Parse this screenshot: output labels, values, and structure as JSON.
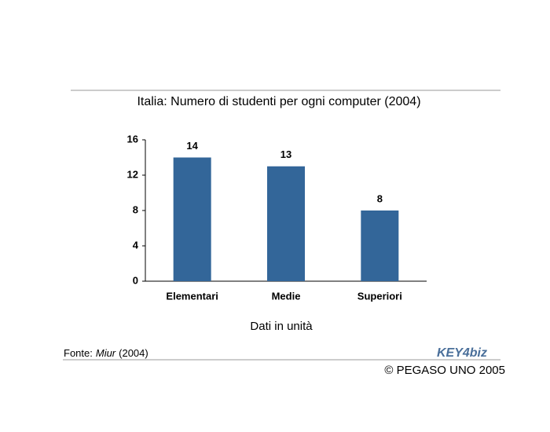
{
  "chart_data": {
    "type": "bar",
    "title": "Italia: Numero di studenti per ogni computer (2004)",
    "categories": [
      "Elementari",
      "Medie",
      "Superiori"
    ],
    "values": [
      14,
      13,
      8
    ],
    "color": "#336699",
    "ylim": [
      0,
      16
    ],
    "yticks": [
      0,
      4,
      8,
      12,
      16
    ],
    "grid": false,
    "xlabel": "Dati in unità"
  },
  "source": {
    "prefix": "Fonte:",
    "name": "Miur",
    "year": "(2004)"
  },
  "logo": "KEY4biz",
  "copyright": "© PEGASO UNO 2005"
}
